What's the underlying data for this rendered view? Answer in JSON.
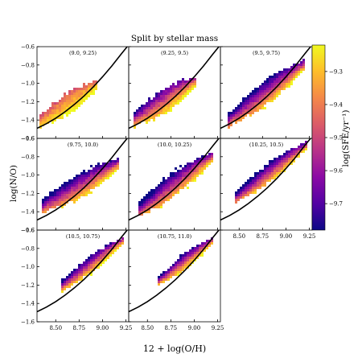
{
  "chart_data": {
    "type": "heatmap",
    "title": "Split by stellar mass",
    "xlabel": "12 + log(O/H)",
    "ylabel": "log(N/O)",
    "xlim": [
      8.3,
      9.28
    ],
    "ylim": [
      -1.6,
      -0.6
    ],
    "xticks": [
      "8.50",
      "8.75",
      "9.00",
      "9.25"
    ],
    "yticks": [
      "-1.6",
      "-1.4",
      "-1.2",
      "-1.0",
      "-0.8",
      "-0.6"
    ],
    "colorbar": {
      "label": "log(SFE/yr⁻¹)",
      "range": [
        -9.78,
        -9.22
      ],
      "ticks": [
        "-9.3",
        "-9.4",
        "-9.5",
        "-9.6",
        "-9.7"
      ],
      "colors": [
        "#0d0887",
        "#5302a3",
        "#8b0aa5",
        "#b83289",
        "#db5c68",
        "#f48849",
        "#febd2a",
        "#f0f921"
      ]
    },
    "relation_curve": {
      "x": [
        8.3,
        8.4,
        8.5,
        8.6,
        8.7,
        8.8,
        8.9,
        9.0,
        9.1,
        9.2,
        9.28
      ],
      "y": [
        -1.49,
        -1.44,
        -1.38,
        -1.31,
        -1.23,
        -1.14,
        -1.04,
        -0.93,
        -0.81,
        -0.68,
        -0.58
      ]
    },
    "panels": [
      {
        "label": "(9.0, 9.25)",
        "x_range": [
          8.32,
          8.95
        ],
        "y_center": [
          -1.42,
          -1.02
        ],
        "spread": 0.12,
        "sfe_hi": -9.22,
        "sfe_lo": -9.45
      },
      {
        "label": "(9.25, 9.5)",
        "x_range": [
          8.35,
          9.02
        ],
        "y_center": [
          -1.4,
          -0.98
        ],
        "spread": 0.14,
        "sfe_hi": -9.25,
        "sfe_lo": -9.7
      },
      {
        "label": "(9.5, 9.75)",
        "x_range": [
          8.38,
          9.2
        ],
        "y_center": [
          -1.4,
          -0.8
        ],
        "spread": 0.14,
        "sfe_hi": -9.3,
        "sfe_lo": -9.78
      },
      {
        "label": "(9.75, 10.0)",
        "x_range": [
          8.35,
          9.18
        ],
        "y_center": [
          -1.34,
          -0.88
        ],
        "spread": 0.14,
        "sfe_hi": -9.3,
        "sfe_lo": -9.78
      },
      {
        "label": "(10.0, 10.25)",
        "x_range": [
          8.4,
          9.2
        ],
        "y_center": [
          -1.38,
          -0.8
        ],
        "spread": 0.14,
        "sfe_hi": -9.3,
        "sfe_lo": -9.78
      },
      {
        "label": "(10.25, 10.5)",
        "x_range": [
          8.45,
          9.22
        ],
        "y_center": [
          -1.25,
          -0.68
        ],
        "spread": 0.11,
        "sfe_hi": -9.3,
        "sfe_lo": -9.78
      },
      {
        "label": "(10.5, 10.75)",
        "x_range": [
          8.55,
          9.22
        ],
        "y_center": [
          -1.22,
          -0.72
        ],
        "spread": 0.1,
        "sfe_hi": -9.25,
        "sfe_lo": -9.75
      },
      {
        "label": "(10.75, 11.0)",
        "x_range": [
          8.62,
          9.2
        ],
        "y_center": [
          -1.15,
          -0.72
        ],
        "spread": 0.09,
        "sfe_hi": -9.25,
        "sfe_lo": -9.75
      }
    ]
  }
}
